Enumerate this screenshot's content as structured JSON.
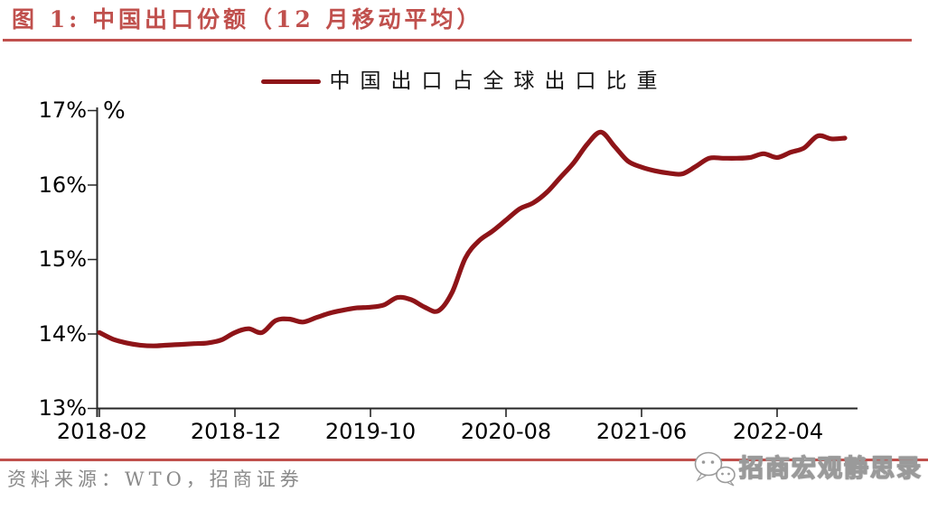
{
  "title": {
    "text": "图 1: 中国出口份额（12 月移动平均）"
  },
  "legend": {
    "label": "中国出口占全球出口比重"
  },
  "unit_label": "%",
  "source": {
    "text": "资料来源：WTO，招商证券"
  },
  "watermark": {
    "icon": "wechat-icon",
    "text": "招商宏观静思录"
  },
  "colors": {
    "accent": "#C0504D",
    "line": "#8E1418",
    "axis": "#262626",
    "source_text": "#8A8A8A",
    "watermark_outline": "#9A9A9A"
  },
  "chart_data": {
    "type": "line",
    "title": "中国出口份额（12 月移动平均）",
    "ylabel": "%",
    "ylim": [
      13,
      17
    ],
    "ytick_step": 1,
    "grid": "off",
    "legend_position": "top-center",
    "y_tick_labels": [
      "17%",
      "16%",
      "15%",
      "14%",
      "13%"
    ],
    "x_tick_labels": [
      "2018-02",
      "2018-12",
      "2019-10",
      "2020-08",
      "2021-06",
      "2022-04"
    ],
    "x": [
      "2018-02",
      "2018-03",
      "2018-04",
      "2018-05",
      "2018-06",
      "2018-07",
      "2018-08",
      "2018-09",
      "2018-10",
      "2018-11",
      "2018-12",
      "2019-01",
      "2019-02",
      "2019-03",
      "2019-04",
      "2019-05",
      "2019-06",
      "2019-07",
      "2019-08",
      "2019-09",
      "2019-10",
      "2019-11",
      "2019-12",
      "2020-01",
      "2020-02",
      "2020-03",
      "2020-04",
      "2020-05",
      "2020-06",
      "2020-07",
      "2020-08",
      "2020-09",
      "2020-10",
      "2020-11",
      "2020-12",
      "2021-01",
      "2021-02",
      "2021-03",
      "2021-04",
      "2021-05",
      "2021-06",
      "2021-07",
      "2021-08",
      "2021-09",
      "2021-10",
      "2021-11",
      "2021-12",
      "2022-01",
      "2022-02",
      "2022-03",
      "2022-04",
      "2022-05",
      "2022-06",
      "2022-07",
      "2022-08",
      "2022-09"
    ],
    "series": [
      {
        "name": "中国出口占全球出口比重",
        "values": [
          14.02,
          13.93,
          13.88,
          13.85,
          13.84,
          13.85,
          13.86,
          13.87,
          13.88,
          13.92,
          14.02,
          14.07,
          14.02,
          14.18,
          14.2,
          14.16,
          14.22,
          14.28,
          14.32,
          14.35,
          14.36,
          14.39,
          14.49,
          14.46,
          14.36,
          14.31,
          14.55,
          15.02,
          15.25,
          15.38,
          15.53,
          15.68,
          15.76,
          15.9,
          16.1,
          16.3,
          16.55,
          16.71,
          16.52,
          16.32,
          16.24,
          16.19,
          16.16,
          16.15,
          16.25,
          16.36,
          16.36,
          16.36,
          16.37,
          16.42,
          16.37,
          16.44,
          16.5,
          16.66,
          16.62,
          16.63
        ]
      }
    ]
  }
}
